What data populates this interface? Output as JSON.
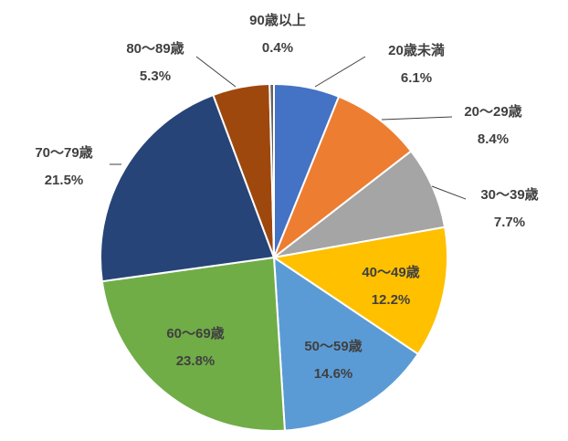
{
  "chart_data": {
    "type": "pie",
    "categories": [
      "20歳未満",
      "20～29歳",
      "30～39歳",
      "40～49歳",
      "50～59歳",
      "60～69歳",
      "70～79歳",
      "80～89歳",
      "90歳以上"
    ],
    "values": [
      6.1,
      8.4,
      7.7,
      12.2,
      14.6,
      23.8,
      21.5,
      5.3,
      0.4
    ],
    "value_labels": [
      "6.1%",
      "8.4%",
      "7.7%",
      "12.2%",
      "14.6%",
      "23.8%",
      "21.5%",
      "5.3%",
      "0.4%"
    ],
    "colors": [
      "#4472C4",
      "#ED7D31",
      "#A5A5A5",
      "#FFC000",
      "#5B9BD5",
      "#70AD47",
      "#264478",
      "#9E480E",
      "#636363"
    ],
    "start_angle_deg": 0,
    "direction": "clockwise",
    "legend": "none"
  }
}
